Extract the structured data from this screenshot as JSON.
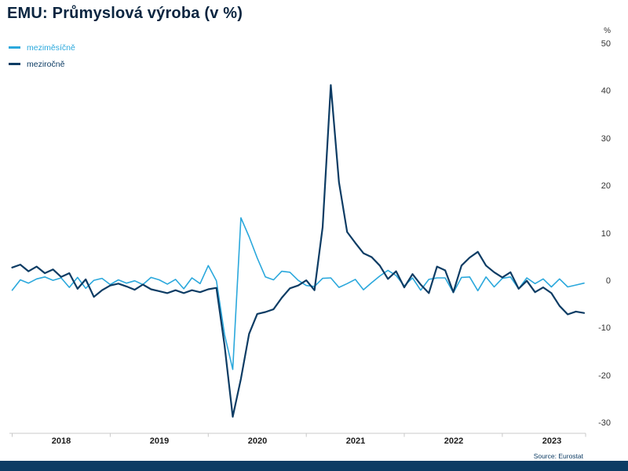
{
  "title": "EMU: Průmyslová výroba (v %)",
  "legend": {
    "items": [
      "meziměsíčně",
      "meziročně"
    ]
  },
  "axis": {
    "unit": "%",
    "y_ticks": [
      "50",
      "40",
      "30",
      "20",
      "10",
      "0",
      "-10",
      "-20",
      "-30"
    ],
    "x_ticks": [
      "2018",
      "2019",
      "2020",
      "2021",
      "2022",
      "2023"
    ]
  },
  "source_note": "Source: Eurostat",
  "colors": {
    "accent_blue": "#2BA8DC",
    "navy": "#0D3C64",
    "title_navy": "#0A2540",
    "axis_line": "#C8C8C8"
  },
  "chart_data": {
    "type": "line",
    "title": "EMU: Průmyslová výroba (v %)",
    "ylabel": "%",
    "xlabel": "",
    "ylim": [
      -30,
      50
    ],
    "y_ticks": [
      50,
      40,
      30,
      20,
      10,
      0,
      -10,
      -20,
      -30
    ],
    "grid": false,
    "legend_position": "top-left",
    "x_unit": "month",
    "x_year_labels": [
      "2018",
      "2019",
      "2020",
      "2021",
      "2022",
      "2023"
    ],
    "x": [
      "2018-01",
      "2018-02",
      "2018-03",
      "2018-04",
      "2018-05",
      "2018-06",
      "2018-07",
      "2018-08",
      "2018-09",
      "2018-10",
      "2018-11",
      "2018-12",
      "2019-01",
      "2019-02",
      "2019-03",
      "2019-04",
      "2019-05",
      "2019-06",
      "2019-07",
      "2019-08",
      "2019-09",
      "2019-10",
      "2019-11",
      "2019-12",
      "2020-01",
      "2020-02",
      "2020-03",
      "2020-04",
      "2020-05",
      "2020-06",
      "2020-07",
      "2020-08",
      "2020-09",
      "2020-10",
      "2020-11",
      "2020-12",
      "2021-01",
      "2021-02",
      "2021-03",
      "2021-04",
      "2021-05",
      "2021-06",
      "2021-07",
      "2021-08",
      "2021-09",
      "2021-10",
      "2021-11",
      "2021-12",
      "2022-01",
      "2022-02",
      "2022-03",
      "2022-04",
      "2022-05",
      "2022-06",
      "2022-07",
      "2022-08",
      "2022-09",
      "2022-10",
      "2022-11",
      "2022-12",
      "2023-01",
      "2023-02",
      "2023-03",
      "2023-04",
      "2023-05",
      "2023-06",
      "2023-07",
      "2023-08",
      "2023-09",
      "2023-10",
      "2023-11"
    ],
    "series": [
      {
        "name": "meziměsíčně",
        "color": "#2BA8DC",
        "stroke_width": 1.6,
        "values": [
          -1.8,
          0.4,
          -0.3,
          0.6,
          1.0,
          0.3,
          0.8,
          -1.2,
          0.9,
          -1.4,
          0.3,
          0.7,
          -0.6,
          0.4,
          -0.3,
          0.2,
          -0.6,
          0.9,
          0.4,
          -0.5,
          0.5,
          -1.5,
          0.8,
          -0.4,
          3.4,
          0.2,
          -11.2,
          -18.5,
          13.5,
          9.5,
          5.0,
          1.0,
          0.4,
          2.2,
          2.0,
          0.3,
          -0.8,
          -1.0,
          0.7,
          0.8,
          -1.2,
          -0.4,
          0.5,
          -1.7,
          -0.2,
          1.2,
          2.4,
          1.3,
          -0.9,
          0.8,
          -1.8,
          0.5,
          0.8,
          0.8,
          -2.3,
          0.9,
          1.0,
          -1.9,
          1.0,
          -1.1,
          0.7,
          1.0,
          -1.5,
          0.8,
          -0.4,
          0.6,
          -1.1,
          0.6,
          -1.1,
          -0.7,
          -0.3
        ]
      },
      {
        "name": "meziročně",
        "color": "#0D3C64",
        "stroke_width": 2.2,
        "values": [
          3.0,
          3.6,
          2.2,
          3.2,
          1.8,
          2.6,
          1.0,
          1.8,
          -1.5,
          0.5,
          -3.2,
          -1.8,
          -0.8,
          -0.4,
          -1.0,
          -1.7,
          -0.6,
          -1.6,
          -2.0,
          -2.4,
          -1.8,
          -2.4,
          -1.8,
          -2.2,
          -1.6,
          -1.3,
          -13.5,
          -28.5,
          -20.5,
          -11.0,
          -6.8,
          -6.4,
          -5.8,
          -3.4,
          -1.4,
          -0.8,
          0.3,
          -1.8,
          11.5,
          41.5,
          21.0,
          10.5,
          8.2,
          6.0,
          5.2,
          3.4,
          0.6,
          2.2,
          -1.2,
          1.6,
          -0.6,
          -2.4,
          3.2,
          2.4,
          -2.2,
          3.4,
          5.1,
          6.3,
          3.4,
          2.0,
          0.9,
          2.0,
          -1.5,
          0.2,
          -2.2,
          -1.2,
          -2.4,
          -5.1,
          -6.9,
          -6.3,
          -6.6
        ]
      }
    ],
    "source": "Source: Eurostat"
  }
}
